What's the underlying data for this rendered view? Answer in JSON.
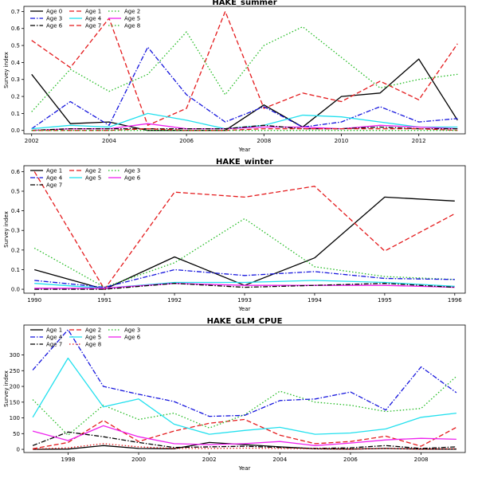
{
  "chart_data": [
    {
      "type": "line",
      "title": "HAKE_summer",
      "xlabel": "Year",
      "ylabel": "Survey index",
      "xlim": [
        2001.8,
        2013.2
      ],
      "ylim": [
        -0.02,
        0.73
      ],
      "xticks": [
        2002,
        2004,
        2006,
        2008,
        2010,
        2012
      ],
      "yticks": [
        0.0,
        0.1,
        0.2,
        0.3,
        0.4,
        0.5,
        0.6,
        0.7
      ],
      "legend_position": "top-left",
      "x": [
        2002,
        2003,
        2004,
        2005,
        2006,
        2007,
        2008,
        2009,
        2010,
        2011,
        2012,
        2013
      ],
      "series": [
        {
          "name": "Age 0",
          "color": "#000000",
          "dash": "solid",
          "values": [
            0.33,
            0.04,
            0.05,
            0.0,
            0.0,
            0.0,
            0.15,
            0.02,
            0.2,
            0.22,
            0.42,
            0.06
          ]
        },
        {
          "name": "Age 1",
          "color": "#e41a1c",
          "dash": "dashed",
          "values": [
            0.53,
            0.37,
            0.66,
            0.03,
            0.13,
            0.7,
            0.13,
            0.22,
            0.17,
            0.29,
            0.18,
            0.51
          ]
        },
        {
          "name": "Age 2",
          "color": "#22bb22",
          "dash": "dotted",
          "values": [
            0.11,
            0.36,
            0.23,
            0.33,
            0.58,
            0.21,
            0.5,
            0.61,
            0.43,
            0.25,
            0.3,
            0.33
          ]
        },
        {
          "name": "Age 3",
          "color": "#1515dd",
          "dash": "dashdot",
          "values": [
            0.01,
            0.17,
            0.03,
            0.49,
            0.21,
            0.05,
            0.14,
            0.02,
            0.05,
            0.14,
            0.05,
            0.07
          ]
        },
        {
          "name": "Age 4",
          "color": "#22e0ee",
          "dash": "solid",
          "values": [
            0.01,
            0.03,
            0.02,
            0.1,
            0.06,
            0.01,
            0.03,
            0.09,
            0.08,
            0.05,
            0.02,
            0.02
          ]
        },
        {
          "name": "Age 5",
          "color": "#ee22ee",
          "dash": "solid",
          "values": [
            0.0,
            0.01,
            0.01,
            0.04,
            0.01,
            0.01,
            0.02,
            0.02,
            0.01,
            0.03,
            0.02,
            0.01
          ]
        },
        {
          "name": "Age 6",
          "color": "#000000",
          "dash": "dashdot",
          "values": [
            0.0,
            0.01,
            0.01,
            0.01,
            0.01,
            0.01,
            0.03,
            0.01,
            0.01,
            0.02,
            0.01,
            0.01
          ]
        },
        {
          "name": "Age 7",
          "color": "#e41a1c",
          "dash": "dashed",
          "values": [
            0.0,
            0.0,
            0.0,
            0.01,
            0.0,
            0.0,
            0.01,
            0.01,
            0.01,
            0.01,
            0.01,
            0.0
          ]
        },
        {
          "name": "Age 8",
          "color": "#22bb22",
          "dash": "dotted",
          "values": [
            0.0,
            0.0,
            0.0,
            0.0,
            0.0,
            0.0,
            0.0,
            0.0,
            0.0,
            0.0,
            0.0,
            0.0
          ]
        }
      ]
    },
    {
      "type": "line",
      "title": "HAKE_winter",
      "xlabel": "Year",
      "ylabel": "Survey index",
      "xlim": [
        1989.85,
        1996.15
      ],
      "ylim": [
        -0.02,
        0.63
      ],
      "xticks": [
        1990,
        1991,
        1992,
        1993,
        1994,
        1995,
        1996
      ],
      "yticks": [
        0.0,
        0.1,
        0.2,
        0.3,
        0.4,
        0.5,
        0.6
      ],
      "legend_position": "top-left",
      "x": [
        1990,
        1991,
        1992,
        1993,
        1994,
        1995,
        1996
      ],
      "series": [
        {
          "name": "Age 1",
          "color": "#000000",
          "dash": "solid",
          "values": [
            0.1,
            0.0,
            0.165,
            0.02,
            0.16,
            0.47,
            0.45
          ]
        },
        {
          "name": "Age 2",
          "color": "#e41a1c",
          "dash": "dashed",
          "values": [
            0.6,
            0.0,
            0.495,
            0.47,
            0.525,
            0.195,
            0.385
          ]
        },
        {
          "name": "Age 3",
          "color": "#22bb22",
          "dash": "dotted",
          "values": [
            0.21,
            0.01,
            0.135,
            0.36,
            0.115,
            0.065,
            0.05
          ]
        },
        {
          "name": "Age 4",
          "color": "#1515dd",
          "dash": "dashdot",
          "values": [
            0.045,
            0.01,
            0.1,
            0.07,
            0.09,
            0.055,
            0.05
          ]
        },
        {
          "name": "Age 5",
          "color": "#22e0ee",
          "dash": "solid",
          "values": [
            0.03,
            0.005,
            0.035,
            0.035,
            0.045,
            0.035,
            0.015
          ]
        },
        {
          "name": "Age 6",
          "color": "#ee22ee",
          "dash": "solid",
          "values": [
            0.005,
            0.005,
            0.03,
            0.02,
            0.02,
            0.02,
            0.01
          ]
        },
        {
          "name": "Age 7",
          "color": "#000000",
          "dash": "dashdot",
          "values": [
            0.0,
            0.0,
            0.03,
            0.01,
            0.02,
            0.03,
            0.01
          ]
        }
      ]
    },
    {
      "type": "line",
      "title": "HAKE_GLM_CPUE",
      "xlabel": "Year",
      "ylabel": "Survey index",
      "xlim": [
        1996.75,
        2009.25
      ],
      "ylim": [
        -10,
        395
      ],
      "xticks": [
        1998,
        2000,
        2002,
        2004,
        2006,
        2008
      ],
      "yticks": [
        0,
        50,
        100,
        150,
        200,
        250,
        300
      ],
      "legend_position": "top-left",
      "x": [
        1997,
        1998,
        1999,
        2000,
        2001,
        2002,
        2003,
        2004,
        2005,
        2006,
        2007,
        2008,
        2009
      ],
      "series": [
        {
          "name": "Age 1",
          "color": "#000000",
          "dash": "solid",
          "values": [
            0,
            1,
            12,
            3,
            2,
            22,
            15,
            8,
            2,
            1,
            3,
            1,
            1
          ]
        },
        {
          "name": "Age 2",
          "color": "#e41a1c",
          "dash": "dashed",
          "values": [
            2,
            22,
            92,
            25,
            58,
            83,
            95,
            45,
            18,
            25,
            42,
            10,
            70
          ]
        },
        {
          "name": "Age 3",
          "color": "#22bb22",
          "dash": "dotted",
          "values": [
            158,
            45,
            140,
            95,
            115,
            68,
            110,
            185,
            150,
            140,
            120,
            130,
            232
          ]
        },
        {
          "name": "Age 4",
          "color": "#1515dd",
          "dash": "dashdot",
          "values": [
            252,
            380,
            200,
            175,
            152,
            105,
            108,
            155,
            160,
            182,
            125,
            262,
            180
          ]
        },
        {
          "name": "Age 5",
          "color": "#22e0ee",
          "dash": "solid",
          "values": [
            102,
            290,
            135,
            160,
            80,
            48,
            60,
            70,
            48,
            52,
            65,
            102,
            115
          ]
        },
        {
          "name": "Age 6",
          "color": "#ee22ee",
          "dash": "solid",
          "values": [
            58,
            28,
            75,
            40,
            18,
            15,
            18,
            25,
            12,
            20,
            30,
            35,
            32
          ]
        },
        {
          "name": "Age 7",
          "color": "#000000",
          "dash": "dashdot",
          "values": [
            12,
            55,
            40,
            22,
            6,
            8,
            10,
            6,
            3,
            5,
            12,
            3,
            8
          ]
        },
        {
          "name": "Age 8",
          "color": "#e41a1c",
          "dash": "dotted",
          "values": [
            1,
            5,
            18,
            8,
            3,
            3,
            4,
            3,
            2,
            1,
            3,
            1,
            2
          ]
        }
      ]
    }
  ]
}
